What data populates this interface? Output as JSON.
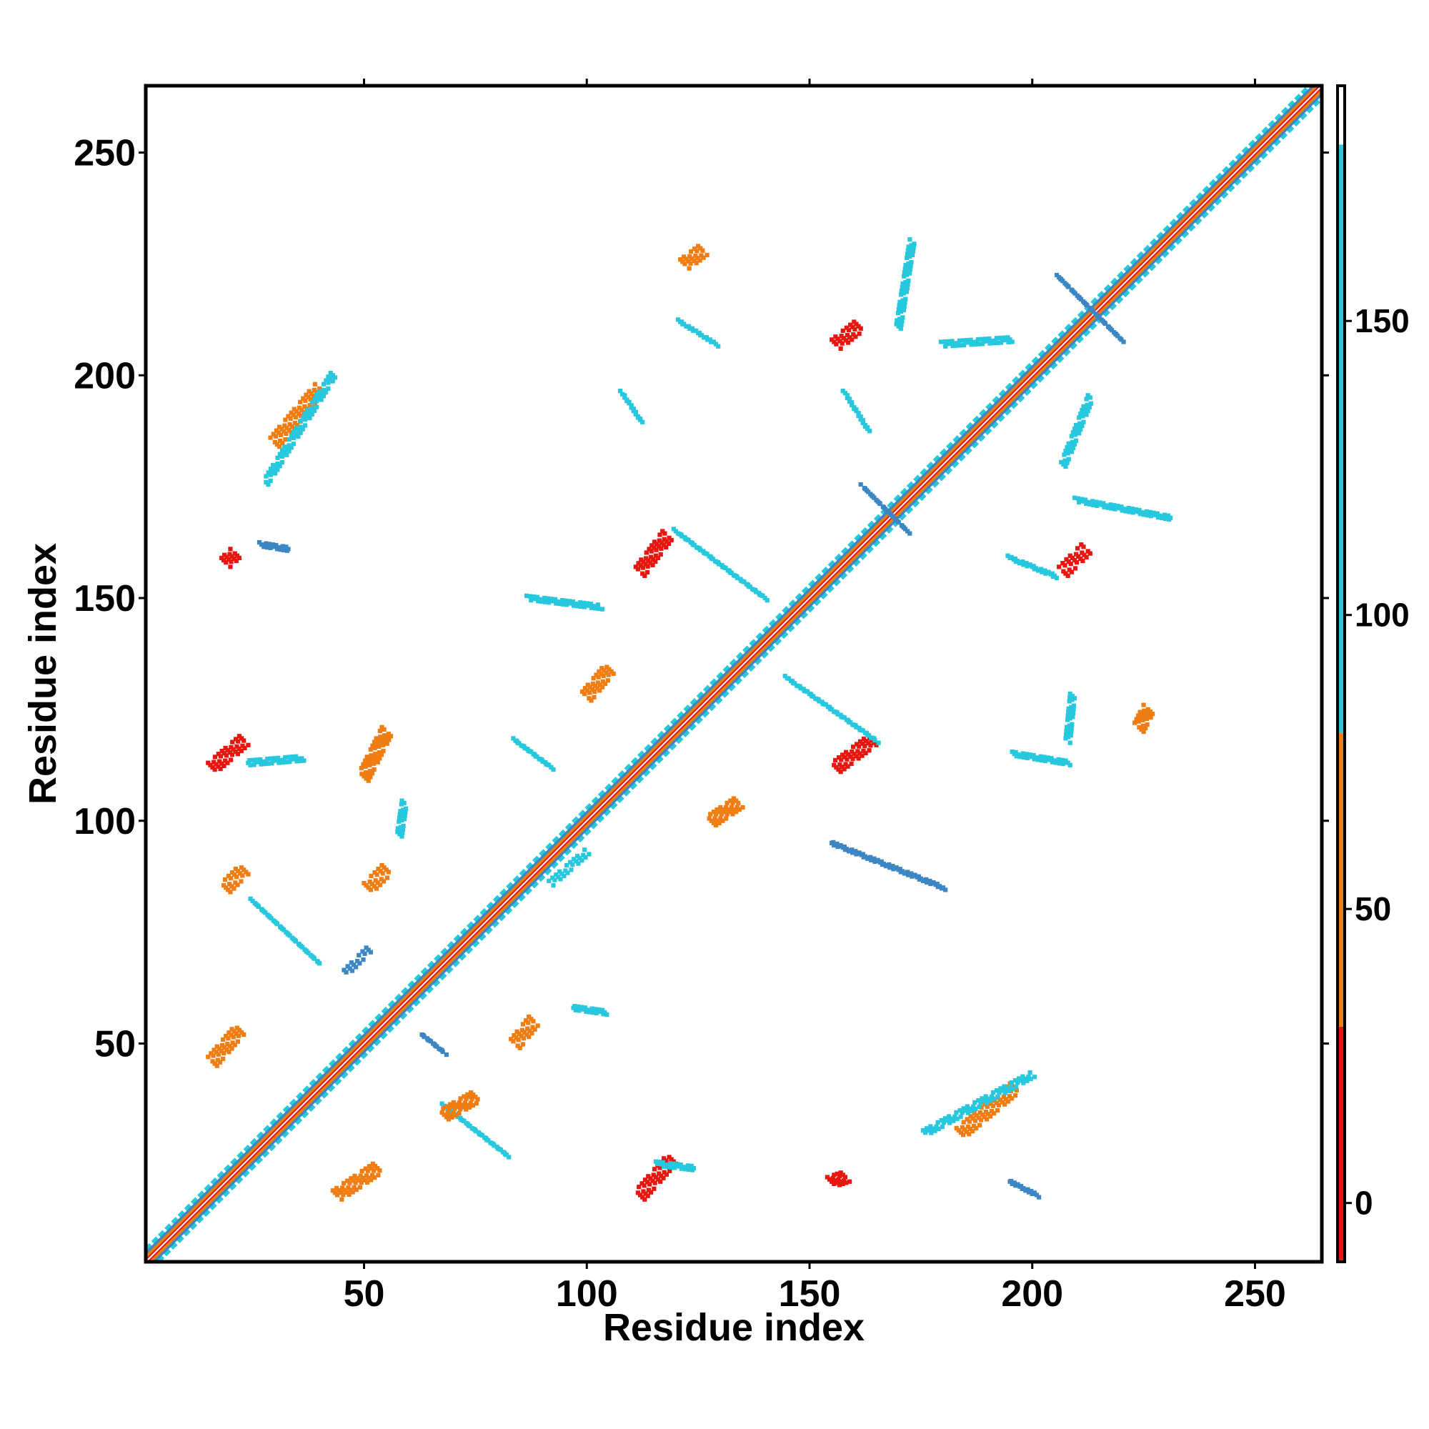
{
  "chart_data": {
    "type": "heatmap",
    "title": "",
    "xlabel": "Residue index",
    "ylabel": "Residue index",
    "xlim": [
      1,
      265
    ],
    "ylim": [
      1,
      265
    ],
    "x_ticks": [
      50,
      100,
      150,
      200,
      250
    ],
    "y_ticks": [
      50,
      100,
      150,
      200,
      250
    ],
    "colorbar": {
      "range": [
        -10,
        190
      ],
      "ticks": [
        0,
        50,
        100,
        150
      ],
      "bands": [
        {
          "from": -10,
          "to": 30,
          "color": "#e8160f"
        },
        {
          "from": 30,
          "to": 80,
          "color": "#f07d12"
        },
        {
          "from": 80,
          "to": 180,
          "color": "#27c8de"
        },
        {
          "from": 180,
          "to": 190,
          "color": "#ffffff"
        }
      ]
    },
    "palette": {
      "red": "#e8160f",
      "orange": "#f07d12",
      "cyan": "#27c8de",
      "blue": "#3d86c4"
    },
    "features": [
      {
        "kind": "diagonal",
        "from": 1,
        "to": 265
      },
      {
        "kind": "segment",
        "x1": 112,
        "y1": 16,
        "x2": 119,
        "y2": 24,
        "color": "red"
      },
      {
        "kind": "segment",
        "x1": 44,
        "y1": 16,
        "x2": 53,
        "y2": 22,
        "color": "orange"
      },
      {
        "kind": "segment",
        "x1": 16,
        "y1": 46,
        "x2": 22,
        "y2": 53,
        "color": "orange"
      },
      {
        "kind": "segment",
        "x1": 16,
        "y1": 112,
        "x2": 23,
        "y2": 118,
        "color": "red"
      },
      {
        "kind": "segment",
        "x1": 112,
        "y1": 156,
        "x2": 118,
        "y2": 164,
        "color": "red"
      },
      {
        "kind": "segment",
        "x1": 156,
        "y1": 112,
        "x2": 164,
        "y2": 118,
        "color": "red"
      },
      {
        "kind": "segment",
        "x1": 156,
        "y1": 207,
        "x2": 161,
        "y2": 211,
        "color": "red"
      },
      {
        "kind": "segment",
        "x1": 207,
        "y1": 156,
        "x2": 212,
        "y2": 161,
        "color": "red"
      },
      {
        "kind": "segment",
        "x1": 51,
        "y1": 85,
        "x2": 55,
        "y2": 89,
        "color": "orange"
      },
      {
        "kind": "segment",
        "x1": 84,
        "y1": 50,
        "x2": 88,
        "y2": 55,
        "color": "orange"
      },
      {
        "kind": "segment",
        "x1": 19,
        "y1": 85,
        "x2": 23,
        "y2": 89,
        "color": "orange"
      },
      {
        "kind": "segment",
        "x1": 46,
        "y1": 66,
        "x2": 51,
        "y2": 71,
        "color": "blue"
      },
      {
        "kind": "segment",
        "x1": 63,
        "y1": 52,
        "x2": 68,
        "y2": 48,
        "color": "blue"
      },
      {
        "kind": "segment",
        "x1": 206,
        "y1": 222,
        "x2": 220,
        "y2": 208,
        "color": "blue"
      },
      {
        "kind": "segment",
        "x1": 162,
        "y1": 175,
        "x2": 172,
        "y2": 165,
        "color": "blue"
      },
      {
        "kind": "segment",
        "x1": 120,
        "y1": 165,
        "x2": 140,
        "y2": 150,
        "color": "cyan"
      },
      {
        "kind": "segment",
        "x1": 145,
        "y1": 132,
        "x2": 165,
        "y2": 118,
        "color": "cyan"
      },
      {
        "kind": "segment",
        "x1": 30,
        "y1": 185,
        "x2": 40,
        "y2": 197,
        "color": "orange"
      },
      {
        "kind": "segment",
        "x1": 184,
        "y1": 30,
        "x2": 196,
        "y2": 40,
        "color": "orange"
      },
      {
        "kind": "segment",
        "x1": 100,
        "y1": 128,
        "x2": 105,
        "y2": 134,
        "color": "orange"
      },
      {
        "kind": "segment",
        "x1": 128,
        "y1": 100,
        "x2": 134,
        "y2": 104,
        "color": "orange"
      },
      {
        "kind": "segment",
        "x1": 122,
        "y1": 225,
        "x2": 126,
        "y2": 228,
        "color": "orange"
      },
      {
        "kind": "segment",
        "x1": 224,
        "y1": 121,
        "x2": 226,
        "y2": 125,
        "color": "orange"
      },
      {
        "kind": "segment",
        "x1": 170,
        "y1": 211,
        "x2": 173,
        "y2": 230,
        "color": "cyan"
      },
      {
        "kind": "segment",
        "x1": 210,
        "y1": 172,
        "x2": 231,
        "y2": 168,
        "color": "cyan"
      },
      {
        "kind": "segment",
        "x1": 25,
        "y1": 82,
        "x2": 40,
        "y2": 68,
        "color": "cyan"
      },
      {
        "kind": "segment",
        "x1": 68,
        "y1": 36,
        "x2": 82,
        "y2": 25,
        "color": "cyan"
      },
      {
        "kind": "segment",
        "x1": 97,
        "y1": 58,
        "x2": 104,
        "y2": 57,
        "color": "cyan"
      },
      {
        "kind": "segment",
        "x1": 58,
        "y1": 97,
        "x2": 59,
        "y2": 104,
        "color": "cyan"
      },
      {
        "kind": "segment",
        "x1": 180,
        "y1": 207,
        "x2": 195,
        "y2": 208,
        "color": "cyan"
      },
      {
        "kind": "segment",
        "x1": 207,
        "y1": 180,
        "x2": 213,
        "y2": 195,
        "color": "cyan"
      },
      {
        "kind": "segment",
        "x1": 176,
        "y1": 30,
        "x2": 200,
        "y2": 43,
        "color": "cyan"
      },
      {
        "kind": "segment",
        "x1": 28,
        "y1": 176,
        "x2": 43,
        "y2": 200,
        "color": "cyan"
      },
      {
        "kind": "segment",
        "x1": 121,
        "y1": 212,
        "x2": 129,
        "y2": 207,
        "color": "cyan"
      },
      {
        "kind": "segment",
        "x1": 108,
        "y1": 196,
        "x2": 112,
        "y2": 190,
        "color": "cyan"
      },
      {
        "kind": "segment",
        "x1": 158,
        "y1": 196,
        "x2": 163,
        "y2": 188,
        "color": "cyan"
      },
      {
        "kind": "segment",
        "x1": 195,
        "y1": 159,
        "x2": 205,
        "y2": 155,
        "color": "cyan"
      },
      {
        "kind": "segment",
        "x1": 155,
        "y1": 95,
        "x2": 180,
        "y2": 85,
        "color": "blue"
      },
      {
        "kind": "segment",
        "x1": 196,
        "y1": 115,
        "x2": 208,
        "y2": 113,
        "color": "cyan"
      },
      {
        "kind": "segment",
        "x1": 208,
        "y1": 118,
        "x2": 209,
        "y2": 128,
        "color": "cyan"
      },
      {
        "kind": "segment",
        "x1": 27,
        "y1": 162,
        "x2": 33,
        "y2": 161,
        "color": "blue"
      },
      {
        "kind": "segment",
        "x1": 19,
        "y1": 158,
        "x2": 21,
        "y2": 160,
        "color": "red"
      },
      {
        "kind": "segment",
        "x1": 24,
        "y1": 113,
        "x2": 36,
        "y2": 114,
        "color": "cyan"
      },
      {
        "kind": "segment",
        "x1": 84,
        "y1": 118,
        "x2": 92,
        "y2": 112,
        "color": "cyan"
      },
      {
        "kind": "segment",
        "x1": 87,
        "y1": 150,
        "x2": 103,
        "y2": 148,
        "color": "cyan"
      },
      {
        "kind": "segment",
        "x1": 68,
        "y1": 34,
        "x2": 75,
        "y2": 38,
        "color": "orange"
      },
      {
        "kind": "segment",
        "x1": 116,
        "y1": 23,
        "x2": 124,
        "y2": 22,
        "color": "cyan"
      },
      {
        "kind": "segment",
        "x1": 195,
        "y1": 19,
        "x2": 201,
        "y2": 16,
        "color": "blue"
      },
      {
        "kind": "segment",
        "x1": 155,
        "y1": 19,
        "x2": 158,
        "y2": 20,
        "color": "red"
      },
      {
        "kind": "segment",
        "x1": 92,
        "y1": 86,
        "x2": 100,
        "y2": 93,
        "color": "cyan"
      },
      {
        "kind": "segment",
        "x1": 50,
        "y1": 110,
        "x2": 55,
        "y2": 120,
        "color": "orange"
      }
    ]
  }
}
